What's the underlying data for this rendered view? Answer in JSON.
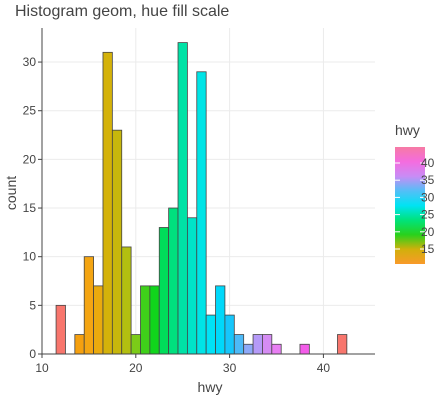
{
  "chart_data": {
    "type": "bar",
    "title": "Histogram geom, hue fill scale",
    "xlabel": "hwy",
    "ylabel": "count",
    "xlim": [
      10,
      45.5
    ],
    "ylim": [
      0,
      33.5
    ],
    "x_ticks": [
      10,
      20,
      30,
      40
    ],
    "y_ticks": [
      0,
      5,
      10,
      15,
      20,
      25,
      30
    ],
    "grid": true,
    "bin_width": 1,
    "bins": [
      {
        "x": 12,
        "count": 5,
        "color": "#f8766d"
      },
      {
        "x": 13,
        "count": 0,
        "color": "#f8766d"
      },
      {
        "x": 14,
        "count": 2,
        "color": "#f5a00f"
      },
      {
        "x": 15,
        "count": 10,
        "color": "#f4a512"
      },
      {
        "x": 16,
        "count": 7,
        "color": "#eaaa0e"
      },
      {
        "x": 17,
        "count": 31,
        "color": "#d4b20a"
      },
      {
        "x": 18,
        "count": 23,
        "color": "#c7b70c"
      },
      {
        "x": 19,
        "count": 11,
        "color": "#b3bf10"
      },
      {
        "x": 20,
        "count": 2,
        "color": "#7bcb18"
      },
      {
        "x": 21,
        "count": 7,
        "color": "#3fd01a"
      },
      {
        "x": 22,
        "count": 7,
        "color": "#10d51c"
      },
      {
        "x": 23,
        "count": 13,
        "color": "#00dd5a"
      },
      {
        "x": 24,
        "count": 15,
        "color": "#00e07e"
      },
      {
        "x": 25,
        "count": 32,
        "color": "#00e2a6"
      },
      {
        "x": 26,
        "count": 14,
        "color": "#00e4c8"
      },
      {
        "x": 27,
        "count": 29,
        "color": "#00e4e6"
      },
      {
        "x": 28,
        "count": 4,
        "color": "#00e2f6"
      },
      {
        "x": 29,
        "count": 7,
        "color": "#00d8fa"
      },
      {
        "x": 30,
        "count": 4,
        "color": "#16c6fb"
      },
      {
        "x": 31,
        "count": 2,
        "color": "#4dbaf8"
      },
      {
        "x": 32,
        "count": 1,
        "color": "#8ea9f8"
      },
      {
        "x": 33,
        "count": 2,
        "color": "#b59af8"
      },
      {
        "x": 34,
        "count": 2,
        "color": "#d58cf3"
      },
      {
        "x": 35,
        "count": 1,
        "color": "#e87ef3"
      },
      {
        "x": 36,
        "count": 0,
        "color": "#e87ef3"
      },
      {
        "x": 37,
        "count": 0,
        "color": "#e87ef3"
      },
      {
        "x": 38,
        "count": 1,
        "color": "#f35ce9"
      },
      {
        "x": 39,
        "count": 0,
        "color": "#f35ce9"
      },
      {
        "x": 40,
        "count": 0,
        "color": "#f35ce9"
      },
      {
        "x": 41,
        "count": 0,
        "color": "#f35ce9"
      },
      {
        "x": 42,
        "count": 2,
        "color": "#f8766d"
      }
    ],
    "legend": {
      "title": "hwy",
      "position": "right",
      "ticks": [
        "40",
        "35",
        "30",
        "25",
        "20",
        "15"
      ],
      "gradient": [
        "#f67ba4",
        "#f46cdf",
        "#c98cf5",
        "#54bff7",
        "#00e3f3",
        "#00e37b",
        "#29d11c",
        "#d1b00b",
        "#f99a2a"
      ]
    }
  }
}
